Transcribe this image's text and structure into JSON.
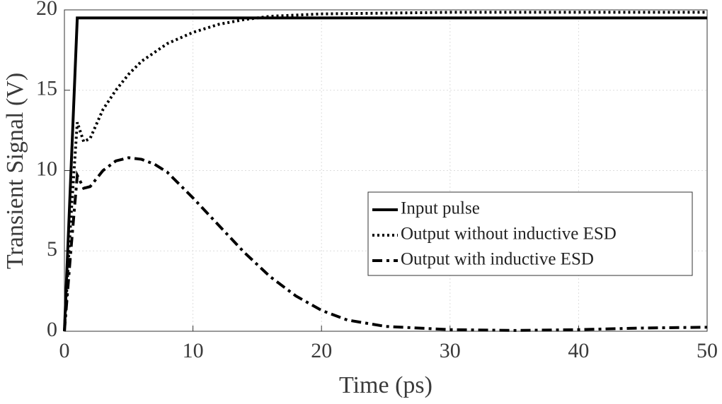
{
  "chart_data": {
    "type": "line",
    "x_label": "Time (ps)",
    "y_label": "Transient Signal (V)",
    "xlim": [
      0,
      50
    ],
    "ylim": [
      0,
      20
    ],
    "xticks": [
      0,
      10,
      20,
      30,
      40,
      50
    ],
    "yticks": [
      0,
      5,
      10,
      15,
      20
    ],
    "grid": true,
    "legend": "right",
    "series": [
      {
        "name": "Input pulse",
        "color": "#000000",
        "style": "solid",
        "x": [
          0,
          1,
          50
        ],
        "values": [
          0,
          19.5,
          19.5
        ]
      },
      {
        "name": "Output without inductive ESD",
        "color": "#000000",
        "style": "dotted",
        "x": [
          0,
          0.5,
          1,
          1.5,
          2,
          3,
          4,
          5,
          6,
          8,
          10,
          12,
          14,
          16,
          20,
          25,
          30,
          40,
          50
        ],
        "values": [
          0,
          7,
          13,
          11.8,
          12,
          13.8,
          15,
          16,
          16.8,
          17.9,
          18.6,
          19.1,
          19.4,
          19.6,
          19.75,
          19.8,
          19.85,
          19.85,
          19.85
        ]
      },
      {
        "name": "Output with inductive ESD",
        "color": "#000000",
        "style": "dashdot",
        "x": [
          0,
          0.5,
          1,
          1.5,
          2,
          3,
          4,
          5,
          6,
          7,
          8,
          10,
          12,
          14,
          16,
          18,
          20,
          22,
          25,
          30,
          35,
          40,
          45,
          50
        ],
        "values": [
          0,
          5,
          9.7,
          8.9,
          9,
          10,
          10.6,
          10.8,
          10.7,
          10.4,
          9.9,
          8.3,
          6.6,
          4.9,
          3.4,
          2.2,
          1.3,
          0.7,
          0.3,
          0.1,
          0.05,
          0.1,
          0.2,
          0.25
        ]
      }
    ]
  }
}
